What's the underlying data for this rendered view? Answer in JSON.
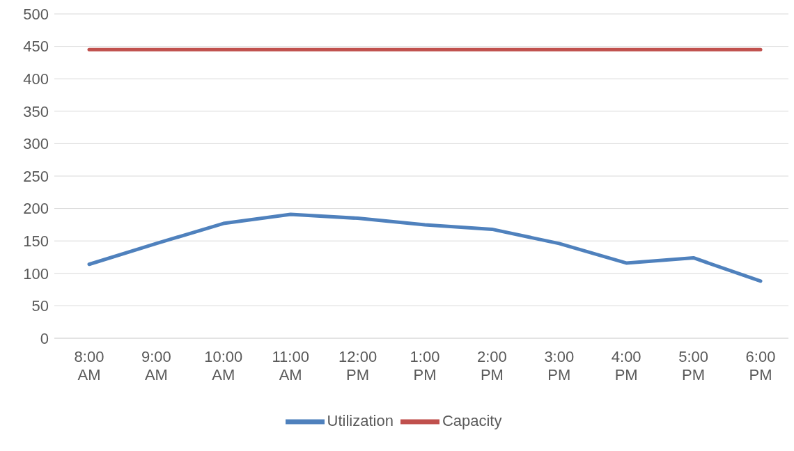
{
  "chart_data": {
    "type": "line",
    "categories": [
      "8:00 AM",
      "9:00 AM",
      "10:00 AM",
      "11:00 AM",
      "12:00 PM",
      "1:00 PM",
      "2:00 PM",
      "3:00 PM",
      "4:00 PM",
      "5:00 PM",
      "6:00 PM"
    ],
    "series": [
      {
        "name": "Utilization",
        "color": "#4f81bd",
        "values": [
          114,
          146,
          177,
          191,
          185,
          175,
          168,
          146,
          116,
          124,
          88
        ]
      },
      {
        "name": "Capacity",
        "color": "#c0504d",
        "values": [
          445,
          445,
          445,
          445,
          445,
          445,
          445,
          445,
          445,
          445,
          445
        ]
      }
    ],
    "ylim": [
      0,
      500
    ],
    "yticks": [
      0,
      50,
      100,
      150,
      200,
      250,
      300,
      350,
      400,
      450,
      500
    ],
    "grid": "y",
    "legend": "bottom",
    "marker": "none",
    "line_style": "solid"
  }
}
